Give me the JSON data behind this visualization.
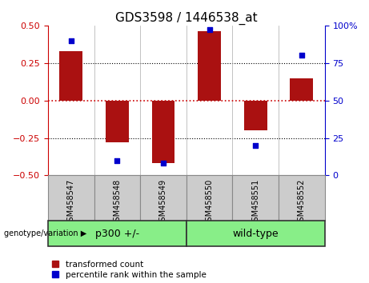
{
  "title": "GDS3598 / 1446538_at",
  "categories": [
    "GSM458547",
    "GSM458548",
    "GSM458549",
    "GSM458550",
    "GSM458551",
    "GSM458552"
  ],
  "red_bars": [
    0.33,
    -0.28,
    -0.42,
    0.46,
    -0.2,
    0.15
  ],
  "blue_dots": [
    90,
    10,
    8,
    97,
    20,
    80
  ],
  "ylim_left": [
    -0.5,
    0.5
  ],
  "ylim_right": [
    0,
    100
  ],
  "left_yticks": [
    -0.5,
    -0.25,
    0,
    0.25,
    0.5
  ],
  "right_yticks": [
    0,
    25,
    50,
    75,
    100
  ],
  "right_ytick_labels": [
    "0",
    "25",
    "50",
    "75",
    "100%"
  ],
  "bar_color": "#aa1111",
  "dot_color": "#0000cc",
  "zero_line_color": "#cc0000",
  "grid_color": "#000000",
  "group1_label": "p300 +/-",
  "group2_label": "wild-type",
  "group1_indices": [
    0,
    1,
    2
  ],
  "group2_indices": [
    3,
    4,
    5
  ],
  "group_color": "#88ee88",
  "group_label_prefix": "genotype/variation",
  "legend_red_label": "transformed count",
  "legend_blue_label": "percentile rank within the sample",
  "bar_width": 0.5,
  "tick_label_color_left": "#cc0000",
  "tick_label_color_right": "#0000cc",
  "title_fontsize": 11,
  "axis_bg_color": "#ffffff",
  "xlabel_bg_color": "#cccccc"
}
